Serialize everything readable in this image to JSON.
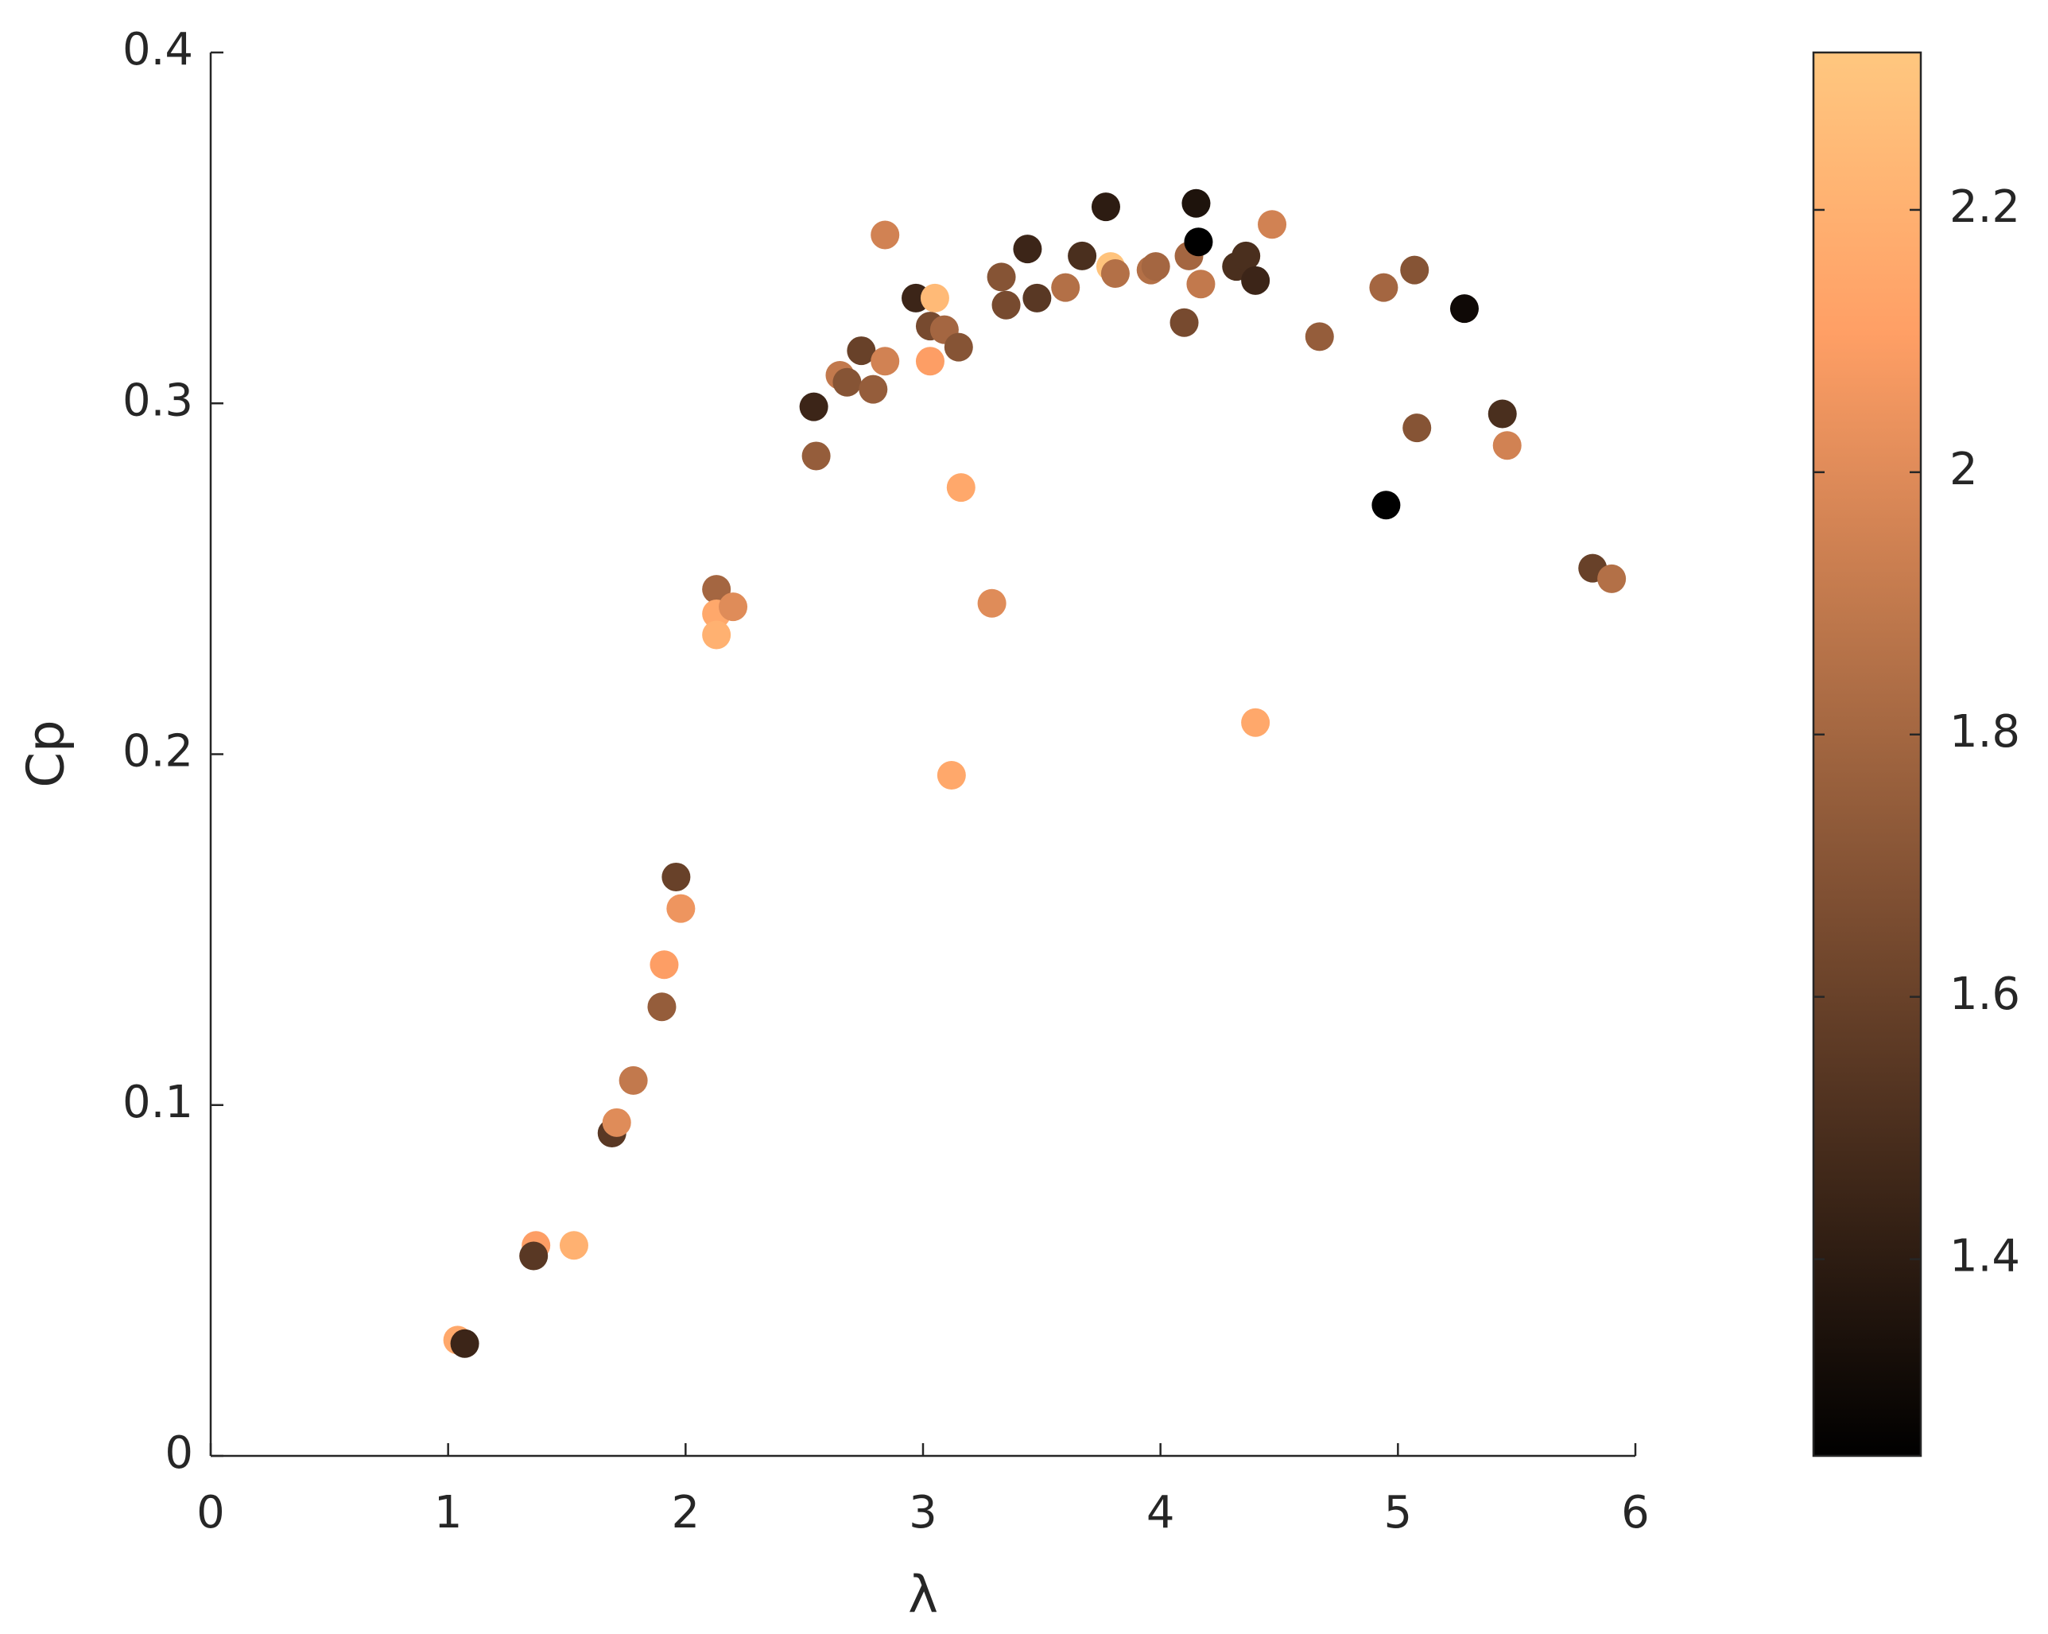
{
  "chart_data": {
    "type": "scatter",
    "xlabel": "λ",
    "ylabel": "Cp",
    "xlim": [
      0,
      6
    ],
    "xticks": [
      0,
      1,
      2,
      3,
      4,
      5,
      6
    ],
    "ylim": [
      0,
      0.4
    ],
    "yticks": [
      0,
      0.1,
      0.2,
      0.3,
      0.4
    ],
    "colormap": "copper",
    "clim": [
      1.25,
      2.32
    ],
    "cticks": [
      1.4,
      1.6,
      1.8,
      2,
      2.2
    ],
    "x": [
      1.04,
      1.07,
      1.37,
      1.36,
      1.53,
      1.69,
      1.71,
      1.78,
      1.9,
      1.91,
      1.96,
      1.98,
      2.13,
      2.13,
      2.2,
      2.13,
      2.54,
      2.55,
      2.65,
      2.68,
      2.74,
      2.79,
      2.84,
      2.84,
      2.97,
      3.05,
      3.03,
      3.03,
      3.09,
      3.15,
      3.16,
      3.12,
      3.29,
      3.33,
      3.35,
      3.44,
      3.48,
      3.6,
      3.67,
      3.77,
      3.79,
      3.81,
      3.96,
      3.98,
      4.1,
      4.12,
      4.15,
      4.16,
      4.17,
      4.32,
      4.36,
      4.4,
      4.4,
      4.47,
      4.67,
      4.94,
      4.95,
      5.07,
      5.08,
      5.28,
      5.44,
      5.46,
      5.82,
      5.9
    ],
    "y": [
      0.033,
      0.032,
      0.06,
      0.057,
      0.06,
      0.092,
      0.095,
      0.107,
      0.128,
      0.14,
      0.165,
      0.156,
      0.247,
      0.24,
      0.242,
      0.234,
      0.299,
      0.285,
      0.308,
      0.306,
      0.315,
      0.304,
      0.348,
      0.312,
      0.33,
      0.33,
      0.322,
      0.312,
      0.321,
      0.316,
      0.276,
      0.194,
      0.243,
      0.336,
      0.328,
      0.344,
      0.33,
      0.333,
      0.342,
      0.356,
      0.339,
      0.337,
      0.338,
      0.339,
      0.323,
      0.342,
      0.357,
      0.346,
      0.334,
      0.339,
      0.342,
      0.335,
      0.209,
      0.351,
      0.319,
      0.333,
      0.271,
      0.338,
      0.293,
      0.327,
      0.297,
      0.288,
      0.253,
      0.25
    ],
    "c": [
      2.15,
      1.45,
      2.1,
      1.55,
      2.2,
      1.55,
      2.0,
      1.9,
      1.75,
      2.1,
      1.6,
      2.05,
      1.8,
      2.15,
      2.0,
      2.2,
      1.45,
      1.75,
      1.9,
      1.7,
      1.6,
      1.75,
      1.95,
      1.95,
      1.45,
      2.25,
      1.65,
      2.1,
      1.8,
      1.7,
      2.15,
      2.15,
      2.0,
      1.7,
      1.65,
      1.45,
      1.55,
      1.85,
      1.5,
      1.4,
      2.3,
      1.85,
      1.85,
      1.8,
      1.65,
      1.8,
      1.35,
      1.25,
      1.9,
      1.5,
      1.5,
      1.45,
      2.15,
      1.95,
      1.75,
      1.8,
      1.25,
      1.7,
      1.7,
      1.3,
      1.5,
      1.95,
      1.6,
      1.85
    ]
  }
}
